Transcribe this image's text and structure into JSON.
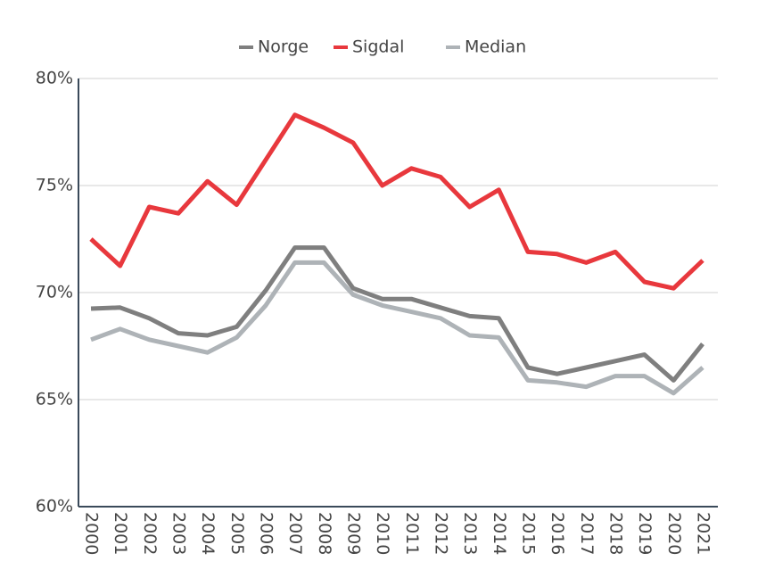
{
  "chart_data": {
    "type": "line",
    "categories": [
      "2000",
      "2001",
      "2002",
      "2003",
      "2004",
      "2005",
      "2006",
      "2007",
      "2008",
      "2009",
      "2010",
      "2011",
      "2012",
      "2013",
      "2014",
      "2015",
      "2016",
      "2017",
      "2018",
      "2019",
      "2020",
      "2021"
    ],
    "series": [
      {
        "name": "Norge",
        "color": "#7f7f7f",
        "values": [
          69.25,
          69.3,
          68.8,
          68.1,
          68.0,
          68.4,
          70.1,
          72.1,
          72.1,
          70.2,
          69.7,
          69.7,
          69.3,
          68.9,
          68.8,
          66.5,
          66.2,
          66.5,
          66.8,
          67.1,
          65.9,
          67.6
        ]
      },
      {
        "name": "Sigdal",
        "color": "#e8383d",
        "values": [
          72.5,
          71.25,
          74.0,
          73.7,
          75.2,
          74.1,
          76.2,
          78.3,
          77.7,
          77.0,
          75.0,
          75.8,
          75.4,
          74.0,
          74.8,
          71.9,
          71.8,
          71.4,
          71.9,
          70.5,
          70.2,
          71.5
        ]
      },
      {
        "name": "Median",
        "color": "#aeb3b7",
        "values": [
          67.8,
          68.3,
          67.8,
          67.5,
          67.2,
          67.9,
          69.4,
          71.4,
          71.4,
          69.9,
          69.4,
          69.1,
          68.8,
          68.0,
          67.9,
          65.9,
          65.8,
          65.6,
          66.1,
          66.1,
          65.3,
          66.5
        ]
      }
    ],
    "ylim": [
      60,
      80
    ],
    "yticks": [
      {
        "value": 60,
        "label": "60%"
      },
      {
        "value": 65,
        "label": "65%"
      },
      {
        "value": 70,
        "label": "70%"
      },
      {
        "value": 75,
        "label": "75%"
      },
      {
        "value": 80,
        "label": "80%"
      }
    ],
    "grid": true,
    "legend": "top"
  }
}
